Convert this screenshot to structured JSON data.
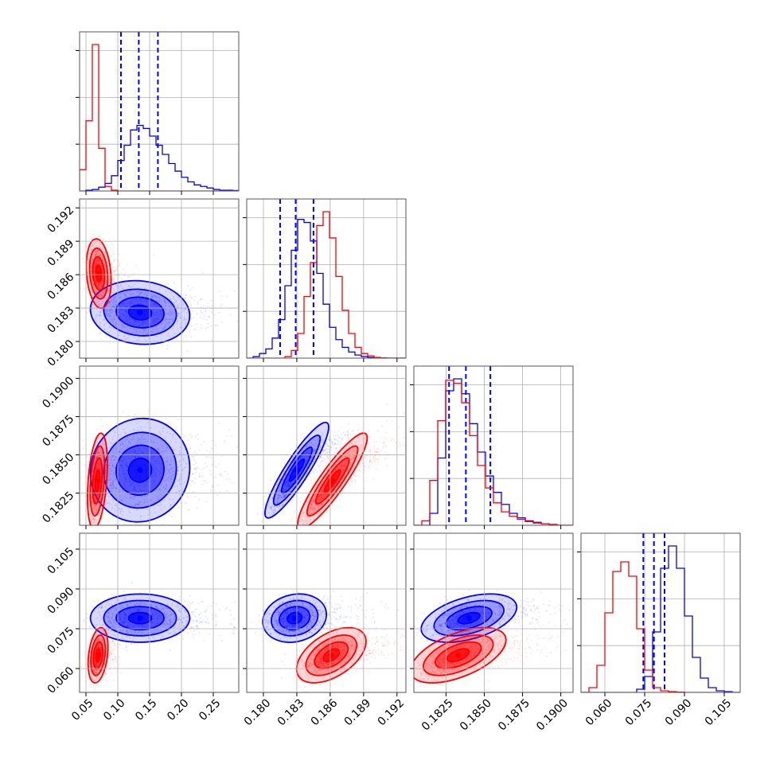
{
  "chart_data": {
    "type": "corner",
    "title": "",
    "grid": true,
    "legend": "none",
    "colors": {
      "series_a": "#0000ff",
      "series_b": "#ff0000"
    },
    "params": [
      {
        "range": [
          0.04,
          0.29
        ],
        "ticks": [
          0.05,
          0.1,
          0.15,
          0.2,
          0.25
        ],
        "tick_labels": [
          "0.05",
          "0.10",
          "0.15",
          "0.20",
          "0.25"
        ]
      },
      {
        "range": [
          0.1785,
          0.1928
        ],
        "ticks": [
          0.18,
          0.183,
          0.186,
          0.189,
          0.192
        ],
        "tick_labels": [
          "0.180",
          "0.183",
          "0.186",
          "0.189",
          "0.192"
        ]
      },
      {
        "range": [
          0.1804,
          0.1908
        ],
        "ticks": [
          0.1825,
          0.185,
          0.1875,
          0.19
        ],
        "tick_labels": [
          "0.1825",
          "0.1850",
          "0.1875",
          "0.1900"
        ]
      },
      {
        "range": [
          0.051,
          0.111
        ],
        "ticks": [
          0.06,
          0.075,
          0.09,
          0.105
        ],
        "tick_labels": [
          "0.060",
          "0.075",
          "0.090",
          "0.105"
        ]
      }
    ],
    "series": [
      {
        "color": "#0000ff",
        "quantiles": [
          [
            0.105,
            0.133,
            0.163
          ],
          [
            0.1815,
            0.1829,
            0.1845
          ],
          [
            0.1827,
            0.1838,
            0.1854
          ],
          [
            0.0745,
            0.0785,
            0.0825
          ]
        ],
        "hist": [
          {
            "edges": [
              0.04,
              0.29
            ],
            "counts": [
              0,
              0.5,
              1,
              2.5,
              5,
              10,
              20,
              30,
              40,
              43,
              41,
              36,
              30,
              24,
              18,
              13,
              9,
              6,
              4,
              3,
              2,
              1,
              0.5,
              0.5,
              0.3
            ]
          },
          {
            "edges": [
              0.1785,
              0.1928
            ],
            "counts": [
              0,
              1,
              3,
              6,
              13,
              25,
              47,
              70,
              90,
              88,
              76,
              55,
              35,
              20,
              12,
              7,
              4,
              2,
              1,
              0.5,
              0.3,
              0,
              0,
              0,
              0
            ]
          },
          {
            "edges": [
              0.1804,
              0.1908
            ],
            "counts": [
              0,
              0,
              8,
              45,
              90,
              98,
              88,
              68,
              49,
              33,
              22,
              14,
              8,
              5,
              3,
              2,
              1,
              0.5,
              0,
              0
            ]
          },
          {
            "edges": [
              0.051,
              0.111
            ],
            "counts": [
              0,
              0,
              0,
              0,
              0,
              0,
              0,
              2,
              10,
              38,
              78,
              92,
              78,
              48,
              22,
              9,
              3,
              1,
              0.5,
              0
            ]
          }
        ]
      },
      {
        "color": "#ff0000",
        "quantiles": [
          null,
          null,
          null,
          null
        ],
        "hist": [
          {
            "edges": [
              0.04,
              0.29
            ],
            "counts": [
              14,
              46,
              96,
              28,
              3,
              0.5,
              0,
              0,
              0,
              0,
              0,
              0,
              0,
              0,
              0,
              0,
              0,
              0,
              0,
              0,
              0,
              0,
              0,
              0,
              0
            ]
          },
          {
            "edges": [
              0.1785,
              0.1928
            ],
            "counts": [
              0,
              0,
              0,
              0,
              0,
              0,
              1,
              5,
              16,
              40,
              62,
              86,
              95,
              78,
              53,
              31,
              16,
              7,
              3,
              1.5,
              0.5,
              0.2,
              0,
              0,
              0
            ]
          },
          {
            "edges": [
              0.1804,
              0.1908
            ],
            "counts": [
              0,
              3,
              30,
              70,
              97,
              95,
              82,
              60,
              40,
              25,
              15,
              9,
              6,
              4,
              2.5,
              1.5,
              1,
              0.5,
              0,
              0
            ]
          },
          {
            "edges": [
              0.051,
              0.111
            ],
            "counts": [
              0,
              3,
              17,
              50,
              76,
              82,
              73,
              40,
              14,
              3,
              1,
              0.5,
              0.2,
              0,
              0,
              0,
              0,
              0,
              0,
              0
            ]
          }
        ]
      }
    ],
    "pairs": [
      {
        "row": 1,
        "col": 0,
        "blobs": [
          {
            "color": "#0000ff",
            "mx": 0.135,
            "my": 0.1826,
            "sx": 0.03,
            "sy": 0.0011,
            "rho": -0.1
          },
          {
            "color": "#ff0000",
            "mx": 0.07,
            "my": 0.1861,
            "sx": 0.0075,
            "sy": 0.0012,
            "rho": -0.2
          }
        ]
      },
      {
        "row": 2,
        "col": 0,
        "blobs": [
          {
            "color": "#0000ff",
            "mx": 0.135,
            "my": 0.184,
            "sx": 0.03,
            "sy": 0.0013,
            "rho": 0.05
          },
          {
            "color": "#ff0000",
            "mx": 0.068,
            "my": 0.1833,
            "sx": 0.006,
            "sy": 0.0012,
            "rho": 0.35
          }
        ]
      },
      {
        "row": 3,
        "col": 0,
        "blobs": [
          {
            "color": "#0000ff",
            "mx": 0.135,
            "my": 0.079,
            "sx": 0.03,
            "sy": 0.0035,
            "rho": 0.0
          },
          {
            "color": "#ff0000",
            "mx": 0.069,
            "my": 0.065,
            "sx": 0.006,
            "sy": 0.004,
            "rho": 0.3
          }
        ]
      },
      {
        "row": 2,
        "col": 1,
        "blobs": [
          {
            "color": "#0000ff",
            "mx": 0.183,
            "my": 0.184,
            "sx": 0.0011,
            "sy": 0.0012,
            "rho": 0.9
          },
          {
            "color": "#ff0000",
            "mx": 0.1862,
            "my": 0.1833,
            "sx": 0.0012,
            "sy": 0.0012,
            "rho": 0.9
          }
        ]
      },
      {
        "row": 3,
        "col": 1,
        "blobs": [
          {
            "color": "#0000ff",
            "mx": 0.1828,
            "my": 0.079,
            "sx": 0.0011,
            "sy": 0.0035,
            "rho": 0.15
          },
          {
            "color": "#ff0000",
            "mx": 0.1861,
            "my": 0.065,
            "sx": 0.0012,
            "sy": 0.004,
            "rho": 0.5
          }
        ]
      },
      {
        "row": 3,
        "col": 2,
        "blobs": [
          {
            "color": "#0000ff",
            "mx": 0.184,
            "my": 0.079,
            "sx": 0.0012,
            "sy": 0.0035,
            "rho": 0.45
          },
          {
            "color": "#ff0000",
            "mx": 0.1833,
            "my": 0.065,
            "sx": 0.0012,
            "sy": 0.004,
            "rho": 0.55
          }
        ]
      }
    ]
  }
}
